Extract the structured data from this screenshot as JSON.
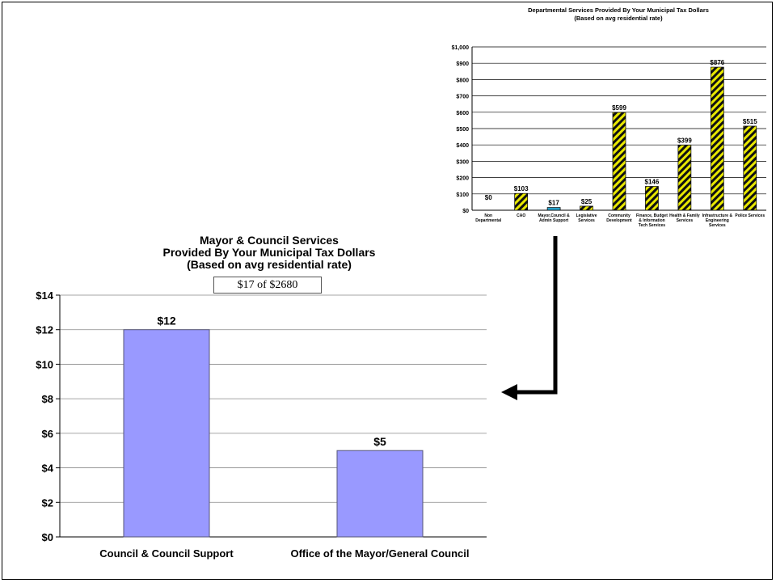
{
  "chart_data": [
    {
      "type": "bar",
      "title": "Departmental Services Provided By Your Municipal Tax Dollars",
      "subtitle": "(Based on avg residential rate)",
      "categories": [
        [
          "Non",
          "Departmental"
        ],
        [
          "CAO"
        ],
        [
          "Mayor,Council &",
          "Admin Support"
        ],
        [
          "Legislative",
          "Services"
        ],
        [
          "Community",
          "Development"
        ],
        [
          "Finance, Budget",
          "& Information",
          "Tech Services"
        ],
        [
          "Health & Family",
          "Services"
        ],
        [
          "Infrastructure &",
          "Engineering",
          "Services"
        ],
        [
          "Police Services"
        ]
      ],
      "values": [
        0,
        103,
        17,
        25,
        599,
        146,
        399,
        876,
        515
      ],
      "data_labels": [
        "$0",
        "$103",
        "$17",
        "$25",
        "$599",
        "$146",
        "$399",
        "$876",
        "$515"
      ],
      "ylim": [
        0,
        1000
      ],
      "yticks": [
        "$0",
        "$100",
        "$200",
        "$300",
        "$400",
        "$500",
        "$600",
        "$700",
        "$800",
        "$900",
        "$1,000"
      ],
      "grid": true,
      "colors": {
        "default": "hatch-yellow-black",
        "highlight_index": 2,
        "highlight": "#2aa0c8"
      }
    },
    {
      "type": "bar",
      "title_lines": [
        "Mayor & Council Services",
        "Provided By Your Municipal Tax Dollars",
        "(Based on avg residential rate)"
      ],
      "box_label": "$17 of $2680",
      "categories": [
        "Council & Council Support",
        "Office of the Mayor/General Council"
      ],
      "values": [
        12,
        5
      ],
      "data_labels": [
        "$12",
        "$5"
      ],
      "ylim": [
        0,
        14
      ],
      "yticks": [
        "$0",
        "$2",
        "$4",
        "$6",
        "$8",
        "$10",
        "$12",
        "$14"
      ],
      "grid": true,
      "colors": {
        "bar": "#9999ff",
        "bar_border": "#555577"
      }
    }
  ]
}
